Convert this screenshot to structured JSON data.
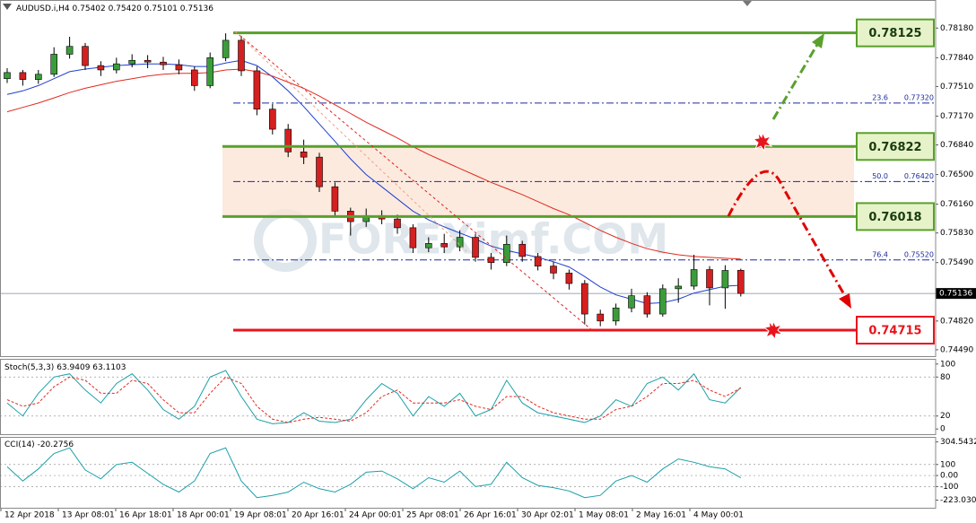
{
  "chart_data": [
    {
      "type": "candlestick",
      "title": "AUDUSD.i,H4",
      "title_values": [
        "0.75402",
        "0.75420",
        "0.75101",
        "0.75136"
      ],
      "watermark": "FOREXimf.COM",
      "x_labels": [
        "12 Apr 2018",
        "13 Apr 08:01",
        "16 Apr 18:01",
        "18 Apr 00:01",
        "19 Apr 08:01",
        "20 Apr 16:01",
        "24 Apr 00:01",
        "25 Apr 08:01",
        "26 Apr 16:01",
        "30 Apr 02:01",
        "1 May 08:01",
        "2 May 16:01",
        "4 May 00:01"
      ],
      "open": [
        0.776,
        0.7767,
        0.7759,
        0.7765,
        0.7788,
        0.7797,
        0.7775,
        0.777,
        0.7777,
        0.7781,
        0.7779,
        0.7776,
        0.777,
        0.7752,
        0.7784,
        0.7804,
        0.7769,
        0.7725,
        0.7702,
        0.7676,
        0.767,
        0.7636,
        0.7608,
        0.7596,
        0.7603,
        0.7599,
        0.7589,
        0.7566,
        0.7571,
        0.7567,
        0.7578,
        0.7555,
        0.7549,
        0.757,
        0.7556,
        0.7545,
        0.7537,
        0.7525,
        0.749,
        0.7482,
        0.7497,
        0.7511,
        0.749,
        0.7519,
        0.7522,
        0.7541,
        0.752,
        0.75402
      ],
      "high": [
        0.7772,
        0.777,
        0.777,
        0.7796,
        0.7808,
        0.7801,
        0.778,
        0.7784,
        0.7788,
        0.7787,
        0.7785,
        0.7782,
        0.7774,
        0.779,
        0.7812,
        0.7809,
        0.7774,
        0.7731,
        0.7708,
        0.769,
        0.7675,
        0.7641,
        0.7612,
        0.7611,
        0.7609,
        0.7604,
        0.7593,
        0.7578,
        0.7582,
        0.7586,
        0.7582,
        0.756,
        0.758,
        0.7574,
        0.756,
        0.755,
        0.7541,
        0.7529,
        0.7495,
        0.7502,
        0.7519,
        0.7515,
        0.7524,
        0.7531,
        0.7558,
        0.7545,
        0.7546,
        0.7542
      ],
      "low": [
        0.7755,
        0.7752,
        0.7754,
        0.7762,
        0.7783,
        0.777,
        0.7763,
        0.7766,
        0.7773,
        0.7772,
        0.777,
        0.7765,
        0.7746,
        0.7749,
        0.778,
        0.7763,
        0.7718,
        0.7696,
        0.767,
        0.7662,
        0.763,
        0.7602,
        0.758,
        0.759,
        0.7593,
        0.7582,
        0.756,
        0.7561,
        0.756,
        0.7562,
        0.755,
        0.7541,
        0.7545,
        0.755,
        0.754,
        0.753,
        0.7518,
        0.7478,
        0.7476,
        0.7477,
        0.7492,
        0.7486,
        0.7487,
        0.7503,
        0.7518,
        0.75,
        0.7496,
        0.75101
      ],
      "close": [
        0.7767,
        0.7759,
        0.7765,
        0.7788,
        0.7797,
        0.7775,
        0.777,
        0.7777,
        0.7781,
        0.7779,
        0.7776,
        0.777,
        0.7752,
        0.7784,
        0.7804,
        0.7769,
        0.7725,
        0.7702,
        0.7676,
        0.767,
        0.7636,
        0.7608,
        0.7596,
        0.7603,
        0.7599,
        0.7589,
        0.7566,
        0.7571,
        0.7567,
        0.7578,
        0.7555,
        0.7549,
        0.757,
        0.7556,
        0.7545,
        0.7537,
        0.7525,
        0.749,
        0.7482,
        0.7497,
        0.7511,
        0.749,
        0.7519,
        0.7522,
        0.7541,
        0.752,
        0.754,
        0.75136
      ],
      "up_color": "#3c9c3c",
      "down_color": "#d42020",
      "series": [
        {
          "color": "#1f3fd0",
          "values": [
            0.7742,
            0.7746,
            0.7752,
            0.776,
            0.7768,
            0.7771,
            0.7773,
            0.7775,
            0.7776,
            0.7777,
            0.7777,
            0.7776,
            0.7774,
            0.7774,
            0.7778,
            0.7781,
            0.7775,
            0.7762,
            0.7746,
            0.7728,
            0.7708,
            0.7688,
            0.7668,
            0.765,
            0.7636,
            0.7622,
            0.7608,
            0.7598,
            0.759,
            0.7583,
            0.7576,
            0.7568,
            0.7563,
            0.7559,
            0.7555,
            0.755,
            0.7544,
            0.7533,
            0.7521,
            0.7512,
            0.7507,
            0.7502,
            0.7503,
            0.7507,
            0.7514,
            0.7518,
            0.7522,
            0.7523
          ]
        },
        {
          "color": "#e02a20",
          "values": [
            0.7722,
            0.7727,
            0.7732,
            0.7738,
            0.7744,
            0.7749,
            0.7753,
            0.7757,
            0.776,
            0.7763,
            0.7765,
            0.7766,
            0.7766,
            0.7767,
            0.777,
            0.7771,
            0.7768,
            0.7763,
            0.7756,
            0.7749,
            0.774,
            0.773,
            0.772,
            0.771,
            0.7701,
            0.7692,
            0.7682,
            0.7673,
            0.7665,
            0.7657,
            0.7649,
            0.7641,
            0.7634,
            0.7627,
            0.7619,
            0.7611,
            0.7604,
            0.7595,
            0.7586,
            0.7578,
            0.7571,
            0.7565,
            0.7561,
            0.7558,
            0.7556,
            0.7555,
            0.7554,
            0.7553
          ]
        }
      ],
      "levels": [
        {
          "value": 0.78125,
          "color": "#5aa02c"
        },
        {
          "value": 0.76822,
          "color": "#5aa02c"
        },
        {
          "value": 0.76018,
          "color": "#5aa02c"
        },
        {
          "value": 0.74715,
          "color": "#e8141c"
        }
      ],
      "fib_levels": [
        {
          "ratio": "23.6",
          "price": {
            "value": 0.7732,
            "label": "0.77320"
          }
        },
        {
          "ratio": "50.0",
          "price": {
            "value": 0.7642,
            "label": "0.76420"
          }
        },
        {
          "ratio": "76.4",
          "price": {
            "value": 0.7552,
            "label": "0.75520"
          }
        }
      ],
      "ylim": [
        0.74417,
        0.78461
      ],
      "yticks": [
        {
          "value": 0.7818,
          "label": "0.78180"
        },
        {
          "value": 0.7784,
          "label": "0.77840"
        },
        {
          "value": 0.7751,
          "label": "0.77510"
        },
        {
          "value": 0.7717,
          "label": "0.77170"
        },
        {
          "value": 0.7684,
          "label": "0.76840"
        },
        {
          "value": 0.765,
          "label": "0.76500"
        },
        {
          "value": 0.7616,
          "label": "0.76160"
        },
        {
          "value": 0.7583,
          "label": "0.75830"
        },
        {
          "value": 0.7549,
          "label": "0.75490"
        },
        {
          "value": 0.7482,
          "label": "0.74820"
        },
        {
          "value": 0.7449,
          "label": "0.74490"
        }
      ]
    },
    {
      "type": "line",
      "title": "Stoch(5,3,3)",
      "series": [
        {
          "color": "#1aa0a8",
          "dash": false,
          "values": [
            40,
            20,
            55,
            80,
            85,
            60,
            40,
            70,
            85,
            60,
            30,
            15,
            35,
            80,
            90,
            50,
            15,
            8,
            10,
            25,
            12,
            10,
            15,
            45,
            70,
            55,
            20,
            50,
            35,
            55,
            20,
            30,
            75,
            40,
            25,
            20,
            15,
            10,
            20,
            45,
            35,
            70,
            80,
            60,
            85,
            45,
            40,
            63.9409
          ]
        },
        {
          "color": "#e02a20",
          "dash": true,
          "values": [
            45,
            35,
            40,
            65,
            80,
            75,
            55,
            55,
            75,
            70,
            45,
            25,
            25,
            55,
            80,
            70,
            35,
            15,
            10,
            15,
            18,
            15,
            12,
            25,
            50,
            60,
            40,
            40,
            40,
            45,
            35,
            30,
            50,
            50,
            35,
            25,
            20,
            15,
            15,
            30,
            35,
            50,
            70,
            70,
            75,
            60,
            50,
            63.1103
          ]
        }
      ],
      "ylim": [
        -8,
        108
      ],
      "yticks": [
        0,
        20,
        80,
        100
      ],
      "grid_ticks": [
        20,
        80
      ]
    },
    {
      "type": "line",
      "title": "CCI(14)",
      "series": [
        {
          "color": "#1aa0a8",
          "dash": false,
          "values": [
            80,
            -50,
            60,
            200,
            250,
            50,
            -30,
            100,
            120,
            20,
            -80,
            -150,
            -50,
            200,
            250,
            -50,
            -200,
            -180,
            -150,
            -60,
            -120,
            -150,
            -80,
            30,
            40,
            -30,
            -120,
            -20,
            -60,
            40,
            -100,
            -80,
            120,
            -20,
            -90,
            -110,
            -140,
            -200,
            -180,
            -50,
            0,
            -60,
            60,
            150,
            120,
            80,
            60,
            -20.2756
          ]
        }
      ],
      "ylim": [
        -292,
        350
      ],
      "yticks": [
        304.5432,
        100,
        {
          "value": 0,
          "label": "0.00"
        },
        -100,
        -223.0306
      ],
      "grid_ticks": [
        100,
        0,
        -100
      ]
    }
  ]
}
